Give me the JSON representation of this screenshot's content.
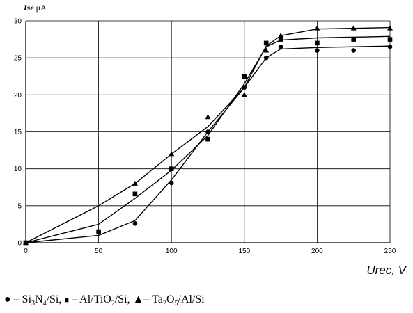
{
  "chart_data": {
    "type": "line",
    "ylabel": "Ise, μA",
    "ylabel_parts": {
      "symbol": "Ise",
      "unit": " μA"
    },
    "xlabel": "Urec, V",
    "xlim": [
      0,
      250
    ],
    "ylim": [
      0,
      30
    ],
    "x_ticks": [
      0,
      50,
      100,
      150,
      200,
      250
    ],
    "y_ticks": [
      0,
      5,
      10,
      15,
      20,
      25,
      30
    ],
    "grid": true,
    "series": [
      {
        "marker": "circle",
        "points": [
          [
            0,
            0
          ],
          [
            75,
            2.6
          ],
          [
            100,
            8.1
          ],
          [
            125,
            15
          ],
          [
            150,
            21
          ],
          [
            165,
            25
          ],
          [
            175,
            26.5
          ],
          [
            200,
            26
          ],
          [
            225,
            26
          ],
          [
            250,
            26.5
          ]
        ],
        "fit": [
          [
            0,
            0
          ],
          [
            50,
            1
          ],
          [
            75,
            3
          ],
          [
            100,
            8.5
          ],
          [
            125,
            15
          ],
          [
            150,
            21
          ],
          [
            165,
            25
          ],
          [
            175,
            26.2
          ],
          [
            200,
            26.4
          ],
          [
            250,
            26.6
          ]
        ]
      },
      {
        "marker": "square",
        "points": [
          [
            0,
            0
          ],
          [
            50,
            1.5
          ],
          [
            75,
            6.6
          ],
          [
            100,
            10
          ],
          [
            125,
            14
          ],
          [
            150,
            22.5
          ],
          [
            165,
            27
          ],
          [
            175,
            27.5
          ],
          [
            200,
            27
          ],
          [
            225,
            27.5
          ],
          [
            250,
            27.5
          ]
        ],
        "fit": [
          [
            0,
            0
          ],
          [
            50,
            2.5
          ],
          [
            75,
            6
          ],
          [
            100,
            9.8
          ],
          [
            125,
            14.5
          ],
          [
            150,
            21.5
          ],
          [
            165,
            26.5
          ],
          [
            175,
            27.4
          ],
          [
            200,
            27.7
          ],
          [
            250,
            27.9
          ]
        ]
      },
      {
        "marker": "triangle",
        "points": [
          [
            0,
            0
          ],
          [
            75,
            8
          ],
          [
            100,
            12
          ],
          [
            125,
            17
          ],
          [
            150,
            20
          ],
          [
            165,
            26
          ],
          [
            175,
            28
          ],
          [
            200,
            29
          ],
          [
            225,
            29
          ],
          [
            250,
            29
          ]
        ],
        "fit": [
          [
            0,
            0
          ],
          [
            50,
            5
          ],
          [
            75,
            8
          ],
          [
            100,
            12
          ],
          [
            125,
            15.7
          ],
          [
            150,
            21
          ],
          [
            165,
            26.6
          ],
          [
            175,
            28
          ],
          [
            200,
            28.9
          ],
          [
            250,
            29.1
          ]
        ]
      }
    ],
    "legend": {
      "placement": "bottom",
      "entries": [
        {
          "glyph": "●",
          "sep": " – ",
          "parts": [
            [
              "Si",
              ""
            ],
            [
              "3",
              "sub"
            ],
            [
              "N",
              ""
            ],
            [
              "4",
              "sub"
            ],
            [
              "/Si",
              ""
            ]
          ]
        },
        {
          "glyph": "■",
          "sep": " – ",
          "parts": [
            [
              "Al/TiO",
              ""
            ],
            [
              "2",
              "sub"
            ],
            [
              "/Si",
              ""
            ]
          ]
        },
        {
          "glyph": "▲",
          "sep": "– ",
          "parts": [
            [
              "Ta",
              ""
            ],
            [
              "2",
              "sub"
            ],
            [
              "O",
              ""
            ],
            [
              "5",
              "sub"
            ],
            [
              "/Al/Si",
              ""
            ]
          ]
        }
      ],
      "separator": ", "
    }
  }
}
